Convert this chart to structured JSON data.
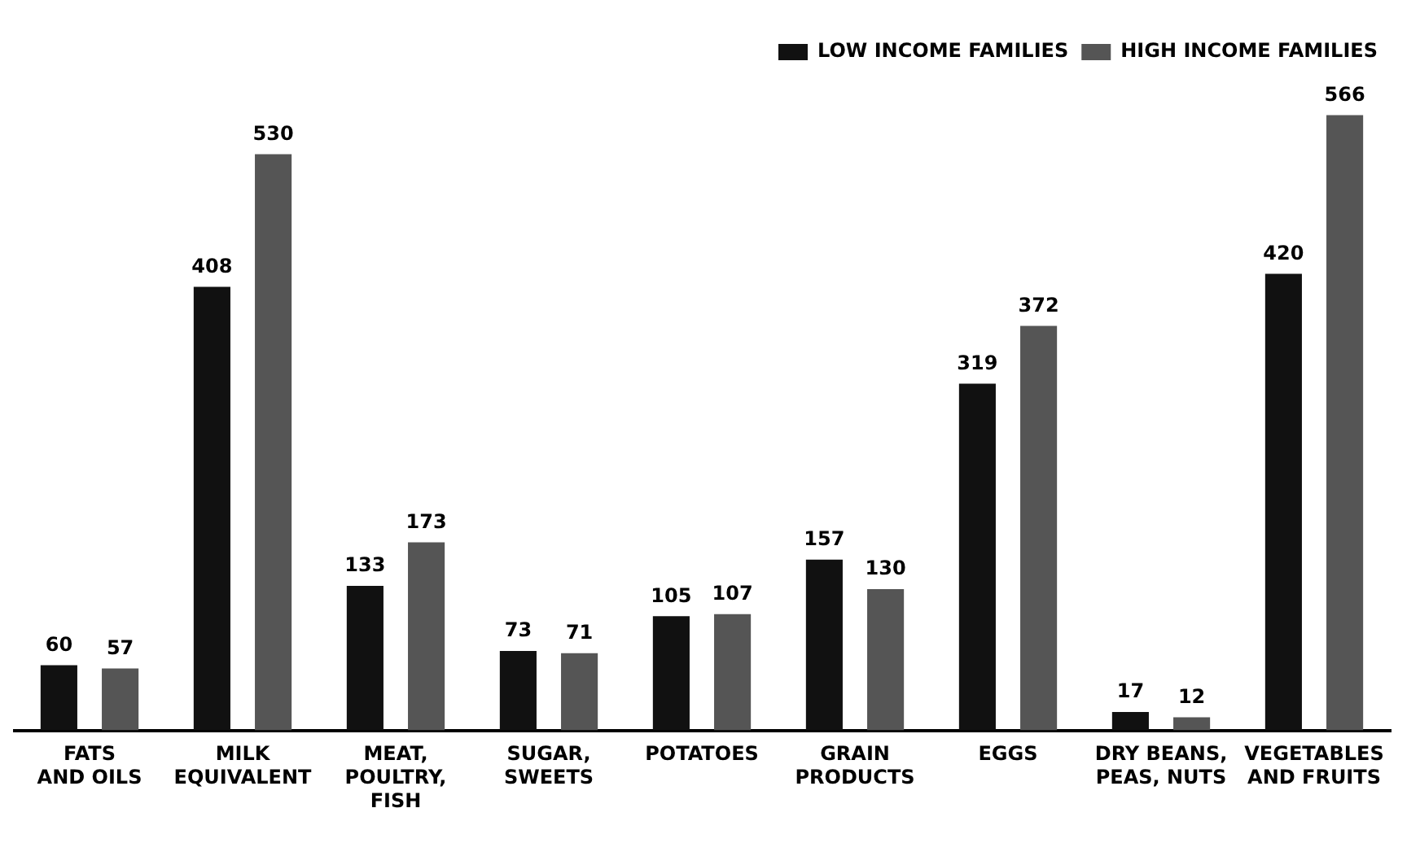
{
  "chart_data": {
    "type": "bar",
    "categories": [
      "FATS\nAND OILS",
      "MILK\nEQUIVALENT",
      "MEAT,\nPOULTRY,\nFISH",
      "SUGAR,\nSWEETS",
      "POTATOES",
      "GRAIN\nPRODUCTS",
      "EGGS",
      "DRY BEANS,\nPEAS, NUTS",
      "VEGETABLES\nAND FRUITS"
    ],
    "series": [
      {
        "name": "LOW INCOME FAMILIES",
        "color": "#111111",
        "values": [
          60,
          408,
          133,
          73,
          105,
          157,
          319,
          17,
          420
        ]
      },
      {
        "name": "HIGH INCOME FAMILIES",
        "color": "#555555",
        "values": [
          57,
          530,
          173,
          71,
          107,
          130,
          372,
          12,
          566
        ]
      }
    ],
    "data_labels": true,
    "legend": "top right",
    "grid": false
  }
}
